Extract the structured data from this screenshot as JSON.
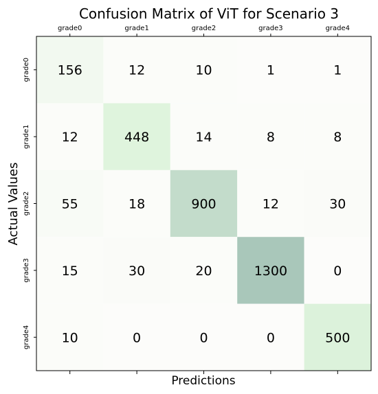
{
  "chart_data": {
    "type": "heatmap",
    "title": "Confusion Matrix of ViT for Scenario 3",
    "xlabel": "Predictions",
    "ylabel": "Actual Values",
    "x_categories": [
      "grade0",
      "grade1",
      "grade2",
      "grade3",
      "grade4"
    ],
    "y_categories": [
      "grade0",
      "grade1",
      "grade2",
      "grade3",
      "grade4"
    ],
    "values": [
      [
        156,
        12,
        10,
        1,
        1
      ],
      [
        12,
        448,
        14,
        8,
        8
      ],
      [
        55,
        18,
        900,
        12,
        30
      ],
      [
        15,
        30,
        20,
        1300,
        0
      ],
      [
        10,
        0,
        0,
        0,
        500
      ]
    ],
    "xaxis_position": "top",
    "grid": false,
    "colors": {
      "low": "#fcfcfa",
      "mid": "#dff4dd",
      "high": "#a9c7ba"
    }
  }
}
